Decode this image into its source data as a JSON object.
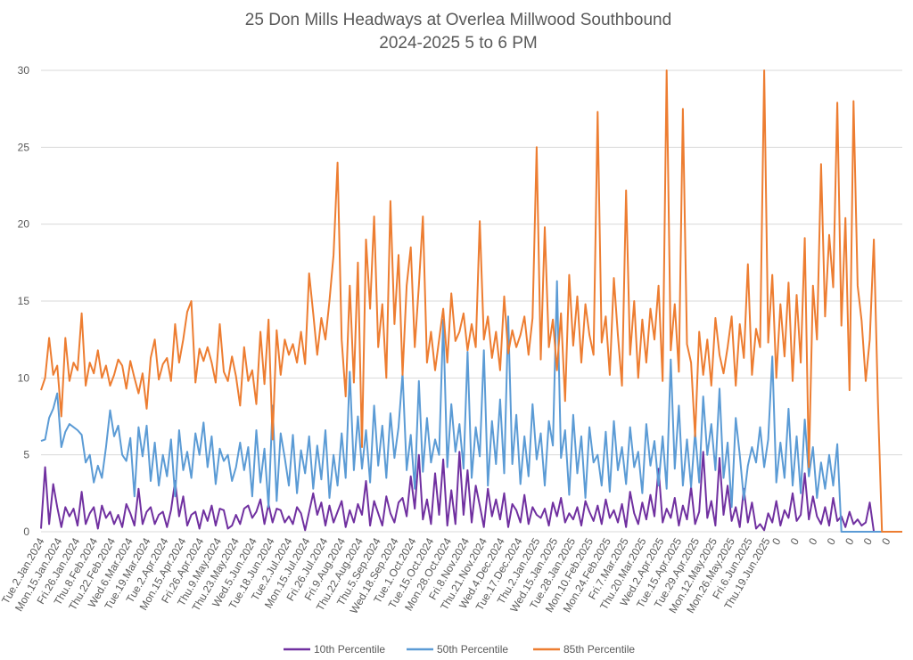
{
  "chart_data": {
    "type": "line",
    "title": [
      "25 Don Mills Headways at Overlea Millwood Southbound",
      "2024-2025 5 to 6 PM"
    ],
    "xlabel": "",
    "ylabel": "",
    "ylim": [
      0,
      30
    ],
    "yticks": [
      "0",
      "5",
      "10",
      "15",
      "20",
      "25",
      "30"
    ],
    "grid": true,
    "legend_position": "bottom",
    "x_tick_labels": [
      "Tue.2.Jan.2024",
      "Mon.15.Jan.2024",
      "Fri.26.Jan.2024",
      "Thu.8.Feb.2024",
      "Thu.22.Feb.2024",
      "Wed.6.Mar.2024",
      "Tue.19.Mar.2024",
      "Tue.2.Apr.2024",
      "Mon.15.Apr.2024",
      "Fri.26.Apr.2024",
      "Thu.9.May.2024",
      "Thu.23.May.2024",
      "Wed.5.Jun.2024",
      "Tue.18.Jun.2024",
      "Tue.2.Jul.2024",
      "Mon.15.Jul.2024",
      "Fri.26.Jul.2024",
      "Fri.9.Aug.2024",
      "Thu.22.Aug.2024",
      "Thu.5.Sep.2024",
      "Wed.18.Sep.2024",
      "Tue.1.Oct.2024",
      "Tue.15.Oct.2024",
      "Mon.28.Oct.2024",
      "Fri.8.Nov.2024",
      "Thu.21.Nov.2024",
      "Wed.4.Dec.2024",
      "Tue.17.Dec.2024",
      "Thu.2.Jan.2025",
      "Wed.15.Jan.2025",
      "Tue.28.Jan.2025",
      "Mon.10.Feb.2025",
      "Mon.24.Feb.2025",
      "Fri.7.Mar.2025",
      "Thu.20.Mar.2025",
      "Wed.2.Apr.2025",
      "Tue.15.Apr.2025",
      "Tue.29.Apr.2025",
      "Mon.12.May.2025",
      "Mon.26.May.2025",
      "Fri.6.Jun.2025",
      "Thu.19.Jun.2025",
      "0",
      "0",
      "0",
      "0",
      "0",
      "0",
      "0"
    ],
    "series": [
      {
        "name": "10th Percentile",
        "color": "#7030A0",
        "values": [
          0.2,
          4.2,
          0.5,
          3.1,
          1.6,
          0.3,
          1.6,
          1.0,
          1.5,
          0.4,
          2.6,
          0.5,
          1.2,
          1.6,
          0.2,
          1.7,
          0.9,
          1.3,
          0.5,
          1.1,
          0.3,
          1.8,
          1.2,
          0.4,
          2.8,
          0.5,
          1.3,
          1.6,
          0.5,
          1.1,
          1.3,
          0.3,
          1.4,
          3.3,
          1.0,
          2.3,
          0.4,
          1.1,
          1.3,
          0.2,
          1.4,
          0.7,
          1.7,
          0.4,
          1.5,
          1.4,
          0.2,
          0.4,
          1.1,
          0.5,
          1.5,
          1.7,
          0.9,
          1.3,
          2.1,
          0.5,
          1.8,
          0.6,
          1.5,
          1.4,
          0.6,
          1.0,
          0.5,
          1.6,
          1.2,
          0.1,
          1.3,
          2.5,
          1.1,
          1.9,
          0.4,
          1.7,
          0.6,
          1.3,
          2.0,
          0.3,
          1.4,
          0.6,
          1.8,
          1.1,
          3.3,
          0.4,
          2.0,
          1.2,
          0.4,
          2.3,
          1.2,
          0.6,
          1.9,
          2.2,
          1.0,
          3.6,
          1.5,
          5.0,
          0.8,
          2.1,
          0.5,
          3.8,
          1.1,
          4.7,
          0.4,
          2.7,
          0.5,
          5.2,
          1.1,
          4.0,
          0.6,
          3.0,
          1.7,
          0.3,
          2.8,
          1.0,
          2.1,
          0.8,
          2.5,
          0.3,
          1.8,
          1.4,
          0.6,
          2.4,
          0.5,
          1.6,
          1.1,
          0.9,
          1.5,
          0.4,
          1.9,
          1.0,
          2.2,
          0.6,
          1.2,
          0.8,
          1.6,
          0.4,
          2.0,
          1.3,
          0.7,
          1.7,
          0.5,
          2.1,
          0.9,
          1.4,
          0.6,
          1.8,
          0.3,
          2.6,
          1.2,
          0.5,
          1.9,
          0.8,
          2.4,
          1.0,
          4.1,
          0.6,
          1.5,
          0.9,
          2.2,
          0.4,
          1.7,
          0.8,
          2.9,
          0.5,
          1.3,
          5.2,
          0.9,
          2.0,
          0.4,
          4.8,
          1.1,
          3.0,
          0.7,
          1.6,
          0.3,
          2.8,
          0.6,
          1.9,
          0.2,
          0.5,
          0.1,
          1.2,
          0.6,
          2.0,
          0.4,
          1.4,
          0.9,
          2.5,
          0.7,
          1.1,
          3.8,
          0.8,
          2.3,
          1.0,
          0.5,
          1.6,
          0.4,
          2.2,
          0.7,
          1.0,
          0.3,
          1.3,
          0.5,
          0.8,
          0.4,
          0.6,
          1.9,
          0.0
        ]
      },
      {
        "name": "50th Percentile",
        "color": "#5B9BD5",
        "values": [
          5.9,
          6.0,
          7.4,
          8.0,
          9.0,
          5.5,
          6.5,
          7.0,
          6.8,
          6.6,
          6.3,
          4.5,
          5.0,
          3.2,
          4.3,
          3.5,
          5.5,
          7.9,
          6.2,
          6.9,
          5.0,
          4.6,
          6.1,
          2.3,
          6.8,
          4.9,
          6.9,
          3.3,
          5.8,
          3.0,
          5.0,
          3.6,
          6.0,
          2.3,
          6.6,
          4.0,
          5.2,
          3.5,
          6.4,
          5.0,
          7.1,
          4.2,
          6.2,
          3.1,
          5.4,
          4.6,
          5.0,
          3.3,
          4.2,
          5.8,
          4.0,
          5.5,
          2.3,
          6.6,
          3.2,
          5.4,
          1.6,
          8.2,
          2.0,
          6.4,
          4.8,
          3.0,
          6.3,
          2.5,
          5.3,
          3.8,
          6.2,
          2.8,
          5.6,
          3.4,
          6.6,
          2.2,
          5.0,
          3.0,
          6.4,
          3.5,
          10.4,
          4.0,
          7.5,
          4.1,
          6.6,
          3.2,
          8.2,
          4.3,
          6.9,
          3.5,
          7.7,
          4.8,
          6.8,
          10.3,
          4.0,
          6.3,
          2.8,
          9.8,
          3.9,
          7.4,
          4.5,
          6.0,
          5.0,
          13.8,
          4.2,
          8.3,
          5.2,
          7.0,
          4.1,
          11.7,
          3.5,
          6.8,
          4.9,
          11.8,
          3.0,
          7.2,
          4.4,
          8.6,
          3.8,
          14.0,
          4.4,
          7.6,
          3.1,
          6.2,
          3.6,
          8.3,
          4.7,
          6.4,
          3.0,
          7.2,
          5.6,
          16.3,
          4.8,
          6.6,
          2.4,
          7.6,
          3.8,
          6.2,
          2.2,
          6.8,
          4.5,
          5.0,
          3.0,
          6.5,
          2.6,
          7.2,
          4.0,
          5.5,
          3.1,
          6.8,
          4.2,
          5.2,
          2.5,
          7.0,
          4.3,
          5.9,
          3.0,
          6.2,
          2.8,
          11.2,
          4.1,
          8.2,
          3.0,
          6.0,
          2.9,
          6.5,
          3.2,
          8.8,
          5.0,
          7.0,
          4.0,
          9.3,
          3.5,
          5.8,
          1.6,
          7.4,
          5.0,
          2.1,
          4.3,
          5.5,
          4.5,
          6.8,
          4.2,
          6.0,
          11.4,
          3.2,
          5.8,
          3.5,
          8.0,
          3.0,
          6.2,
          2.5,
          7.3,
          3.6,
          5.5,
          2.2,
          4.5,
          2.8,
          5.0,
          3.0,
          5.7,
          0.0
        ]
      },
      {
        "name": "85th Percentile",
        "color": "#ED7D31",
        "values": [
          9.2,
          10.0,
          12.6,
          10.2,
          10.8,
          7.5,
          12.6,
          9.8,
          11.0,
          10.5,
          14.2,
          9.5,
          11.0,
          10.3,
          11.8,
          10.0,
          10.8,
          9.5,
          10.2,
          11.2,
          10.8,
          9.3,
          11.1,
          10.0,
          9.0,
          10.3,
          8.0,
          11.3,
          12.5,
          9.9,
          10.9,
          11.3,
          9.8,
          13.5,
          11.0,
          12.5,
          14.3,
          15.0,
          9.7,
          11.9,
          11.1,
          12.0,
          11.0,
          9.7,
          13.5,
          10.4,
          9.8,
          11.4,
          10.1,
          8.2,
          12.0,
          9.8,
          10.5,
          8.3,
          13.0,
          9.6,
          13.8,
          6.0,
          13.1,
          10.2,
          12.5,
          11.5,
          12.2,
          11.0,
          13.0,
          10.9,
          16.8,
          14.2,
          11.5,
          13.9,
          12.5,
          15.0,
          18.0,
          24.0,
          12.5,
          8.8,
          16.0,
          9.7,
          17.5,
          5.5,
          19.0,
          14.5,
          20.5,
          12.0,
          14.8,
          10.0,
          21.5,
          13.5,
          18.0,
          10.2,
          16.0,
          18.5,
          12.0,
          16.0,
          20.5,
          11.0,
          13.0,
          10.5,
          12.5,
          14.5,
          11.0,
          15.5,
          12.4,
          13.0,
          14.2,
          11.8,
          13.5,
          12.0,
          20.2,
          12.5,
          14.0,
          11.3,
          13.0,
          10.5,
          15.3,
          11.6,
          13.1,
          12.0,
          12.8,
          14.0,
          11.5,
          13.9,
          25.0,
          11.2,
          19.8,
          12.0,
          13.8,
          10.5,
          14.2,
          8.5,
          16.7,
          12.1,
          15.3,
          11.0,
          14.8,
          12.8,
          11.5,
          27.3,
          12.3,
          14.0,
          10.2,
          16.5,
          12.8,
          9.5,
          22.2,
          11.5,
          15.0,
          10.0,
          13.8,
          11.0,
          14.5,
          12.5,
          16.0,
          9.8,
          30.0,
          11.8,
          14.8,
          10.4,
          27.5,
          12.2,
          11.0,
          6.2,
          13.0,
          10.2,
          12.5,
          9.5,
          13.9,
          11.5,
          10.3,
          12.0,
          14.0,
          9.5,
          13.5,
          11.3,
          17.4,
          10.2,
          13.2,
          12.0,
          30.0,
          12.3,
          16.7,
          10.0,
          14.8,
          11.4,
          16.2,
          9.8,
          15.4,
          11.0,
          19.1,
          4.2,
          16.0,
          12.5,
          23.9,
          14.0,
          19.3,
          15.9,
          27.9,
          13.4,
          20.4,
          9.2,
          28.0,
          16.0,
          13.7,
          9.8,
          12.5,
          19.0,
          8.4,
          0.0
        ]
      }
    ],
    "trailing_zero_points": 7
  }
}
